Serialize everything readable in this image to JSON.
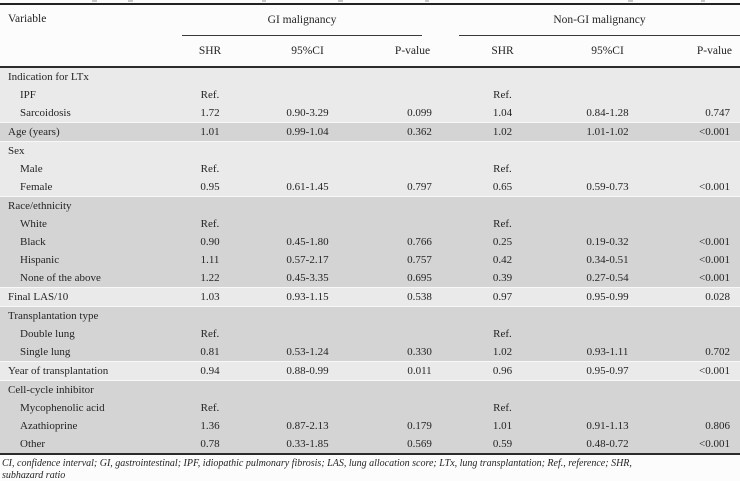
{
  "header": {
    "variable": "Variable",
    "group1": "GI malignancy",
    "group2": "Non-GI malignancy",
    "subcols": [
      "SHR",
      "95%CI",
      "P-value"
    ]
  },
  "table": {
    "groups": [
      {
        "band": "light",
        "rows": [
          {
            "label": "Indication for LTx",
            "indent": 0,
            "values": [
              "",
              "",
              "",
              "",
              "",
              ""
            ]
          },
          {
            "label": "IPF",
            "indent": 1,
            "values": [
              "Ref.",
              "",
              "",
              "Ref.",
              "",
              ""
            ]
          },
          {
            "label": "Sarcoidosis",
            "indent": 1,
            "values": [
              "1.72",
              "0.90-3.29",
              "0.099",
              "1.04",
              "0.84-1.28",
              "0.747"
            ]
          }
        ]
      },
      {
        "band": "dark",
        "rows": [
          {
            "label": "Age (years)",
            "indent": 0,
            "values": [
              "1.01",
              "0.99-1.04",
              "0.362",
              "1.02",
              "1.01-1.02",
              "<0.001"
            ]
          }
        ]
      },
      {
        "band": "light",
        "rows": [
          {
            "label": "Sex",
            "indent": 0,
            "values": [
              "",
              "",
              "",
              "",
              "",
              ""
            ]
          },
          {
            "label": "Male",
            "indent": 1,
            "values": [
              "Ref.",
              "",
              "",
              "Ref.",
              "",
              ""
            ]
          },
          {
            "label": "Female",
            "indent": 1,
            "values": [
              "0.95",
              "0.61-1.45",
              "0.797",
              "0.65",
              "0.59-0.73",
              "<0.001"
            ]
          }
        ]
      },
      {
        "band": "dark",
        "rows": [
          {
            "label": "Race/ethnicity",
            "indent": 0,
            "values": [
              "",
              "",
              "",
              "",
              "",
              ""
            ]
          },
          {
            "label": "White",
            "indent": 1,
            "values": [
              "Ref.",
              "",
              "",
              "Ref.",
              "",
              ""
            ]
          },
          {
            "label": "Black",
            "indent": 1,
            "values": [
              "0.90",
              "0.45-1.80",
              "0.766",
              "0.25",
              "0.19-0.32",
              "<0.001"
            ]
          },
          {
            "label": "Hispanic",
            "indent": 1,
            "values": [
              "1.11",
              "0.57-2.17",
              "0.757",
              "0.42",
              "0.34-0.51",
              "<0.001"
            ]
          },
          {
            "label": "None of the above",
            "indent": 1,
            "values": [
              "1.22",
              "0.45-3.35",
              "0.695",
              "0.39",
              "0.27-0.54",
              "<0.001"
            ]
          }
        ]
      },
      {
        "band": "light",
        "rows": [
          {
            "label": "Final LAS/10",
            "indent": 0,
            "values": [
              "1.03",
              "0.93-1.15",
              "0.538",
              "0.97",
              "0.95-0.99",
              "0.028"
            ]
          }
        ]
      },
      {
        "band": "dark",
        "rows": [
          {
            "label": "Transplantation type",
            "indent": 0,
            "values": [
              "",
              "",
              "",
              "",
              "",
              ""
            ]
          },
          {
            "label": "Double lung",
            "indent": 1,
            "values": [
              "Ref.",
              "",
              "",
              "Ref.",
              "",
              ""
            ]
          },
          {
            "label": "Single lung",
            "indent": 1,
            "values": [
              "0.81",
              "0.53-1.24",
              "0.330",
              "1.02",
              "0.93-1.11",
              "0.702"
            ]
          }
        ]
      },
      {
        "band": "light",
        "rows": [
          {
            "label": "Year of transplantation",
            "indent": 0,
            "values": [
              "0.94",
              "0.88-0.99",
              "0.011",
              "0.96",
              "0.95-0.97",
              "<0.001"
            ]
          }
        ]
      },
      {
        "band": "dark",
        "rows": [
          {
            "label": "Cell-cycle inhibitor",
            "indent": 0,
            "values": [
              "",
              "",
              "",
              "",
              "",
              ""
            ]
          },
          {
            "label": "Mycophenolic acid",
            "indent": 1,
            "values": [
              "Ref.",
              "",
              "",
              "Ref.",
              "",
              ""
            ]
          },
          {
            "label": "Azathioprine",
            "indent": 1,
            "values": [
              "1.36",
              "0.87-2.13",
              "0.179",
              "1.01",
              "0.91-1.13",
              "0.806"
            ]
          },
          {
            "label": "Other",
            "indent": 1,
            "values": [
              "0.78",
              "0.33-1.85",
              "0.569",
              "0.59",
              "0.48-0.72",
              "<0.001"
            ]
          }
        ]
      }
    ]
  },
  "footnote": {
    "line1": "CI, confidence interval; GI, gastrointestinal; IPF, idiopathic pulmonary fibrosis; LAS, lung allocation score; LTx, lung transplantation; Ref., reference; SHR,",
    "line2": "subhazard ratio"
  },
  "colors": {
    "band_light": "#eaeaea",
    "band_dark": "#d4d4d4",
    "rule": "#2c2c2c",
    "text": "#242424"
  }
}
